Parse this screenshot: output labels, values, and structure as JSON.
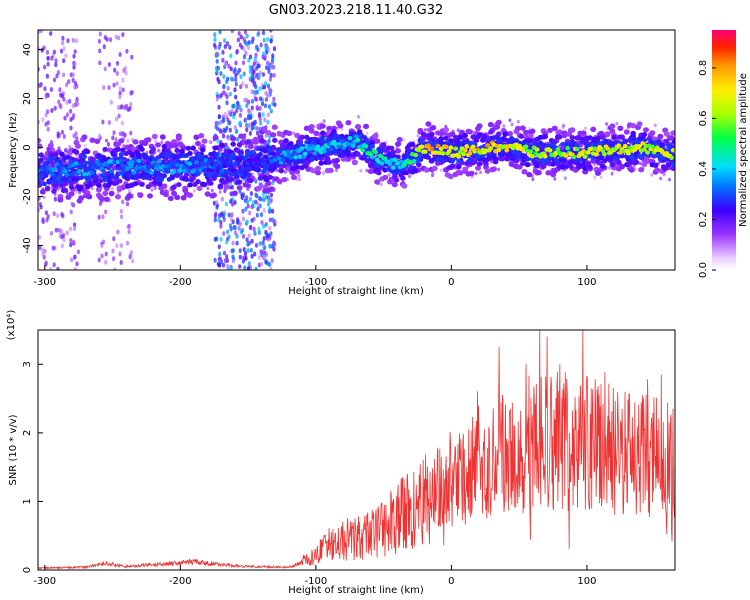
{
  "title": "GN03.2023.218.11.40.G32",
  "chart_data": [
    {
      "type": "heatmap",
      "xlabel": "Height of straight line (km)",
      "ylabel": "Frequency (Hz)",
      "xlim": [
        -305,
        165
      ],
      "ylim": [
        -50,
        48
      ],
      "xticks": [
        -300,
        -200,
        -100,
        0,
        100
      ],
      "yticks": [
        -40,
        -20,
        0,
        20,
        40
      ],
      "colorbar": {
        "label": "Normalized spectral amplitude",
        "range": [
          0,
          0.95
        ],
        "ticks": [
          "0.0",
          "0.2",
          "0.4",
          "0.6",
          "0.8"
        ]
      },
      "ridge": [
        {
          "x": -305,
          "f": -10,
          "amp": 0.35
        },
        {
          "x": -280,
          "f": -9,
          "amp": 0.38
        },
        {
          "x": -250,
          "f": -8,
          "amp": 0.4
        },
        {
          "x": -220,
          "f": -8,
          "amp": 0.38
        },
        {
          "x": -190,
          "f": -8,
          "amp": 0.4
        },
        {
          "x": -160,
          "f": -7,
          "amp": 0.3
        },
        {
          "x": -135,
          "f": -5,
          "amp": 0.3
        },
        {
          "x": -125,
          "f": -4,
          "amp": 0.4
        },
        {
          "x": -110,
          "f": -2,
          "amp": 0.45
        },
        {
          "x": -95,
          "f": 0,
          "amp": 0.45
        },
        {
          "x": -80,
          "f": 1,
          "amp": 0.45
        },
        {
          "x": -70,
          "f": 3,
          "amp": 0.5
        },
        {
          "x": -55,
          "f": -4,
          "amp": 0.55
        },
        {
          "x": -40,
          "f": -7,
          "amp": 0.45
        },
        {
          "x": -30,
          "f": -5,
          "amp": 0.55
        },
        {
          "x": -20,
          "f": 0,
          "amp": 0.85
        },
        {
          "x": 0,
          "f": -2,
          "amp": 0.8
        },
        {
          "x": 20,
          "f": -1,
          "amp": 0.82
        },
        {
          "x": 40,
          "f": 1,
          "amp": 0.8
        },
        {
          "x": 60,
          "f": -2,
          "amp": 0.7
        },
        {
          "x": 80,
          "f": -2,
          "amp": 0.75
        },
        {
          "x": 100,
          "f": -2,
          "amp": 0.75
        },
        {
          "x": 120,
          "f": -1,
          "amp": 0.78
        },
        {
          "x": 140,
          "f": 0,
          "amp": 0.75
        },
        {
          "x": 165,
          "f": -3,
          "amp": 0.75
        }
      ],
      "noise_bands": [
        {
          "x_start": -305,
          "x_end": -275,
          "amp": 0.15
        },
        {
          "x_start": -260,
          "x_end": -235,
          "amp": 0.12
        },
        {
          "x_start": -175,
          "x_end": -130,
          "amp": 0.35
        }
      ]
    },
    {
      "type": "line",
      "xlabel": "Height of straight line (km)",
      "ylabel": "SNR (10 * v/v)",
      "scale_label": "(x10⁴)",
      "xlim": [
        -305,
        165
      ],
      "ylim": [
        0,
        3.5
      ],
      "xticks": [
        -300,
        -200,
        -100,
        0,
        100
      ],
      "yticks": [
        0,
        1,
        2,
        3
      ],
      "series_color": "#ee3333",
      "trend": [
        {
          "x": -305,
          "y": 0.03
        },
        {
          "x": -270,
          "y": 0.04
        },
        {
          "x": -255,
          "y": 0.1
        },
        {
          "x": -240,
          "y": 0.05
        },
        {
          "x": -190,
          "y": 0.12
        },
        {
          "x": -160,
          "y": 0.06
        },
        {
          "x": -120,
          "y": 0.04
        },
        {
          "x": -100,
          "y": 0.2
        },
        {
          "x": -90,
          "y": 0.45
        },
        {
          "x": -70,
          "y": 0.45
        },
        {
          "x": -50,
          "y": 0.6
        },
        {
          "x": -30,
          "y": 0.9
        },
        {
          "x": -10,
          "y": 1.1
        },
        {
          "x": 10,
          "y": 1.4
        },
        {
          "x": 30,
          "y": 1.7
        },
        {
          "x": 60,
          "y": 1.85
        },
        {
          "x": 90,
          "y": 1.9
        },
        {
          "x": 120,
          "y": 1.75
        },
        {
          "x": 150,
          "y": 1.65
        },
        {
          "x": 165,
          "y": 1.6
        }
      ],
      "peaks": [
        {
          "x": 97,
          "y": 3.5
        },
        {
          "x": 155,
          "y": 2.85
        },
        {
          "x": 55,
          "y": 3.0
        },
        {
          "x": 80,
          "y": 3.0
        },
        {
          "x": 128,
          "y": 2.6
        }
      ]
    }
  ]
}
